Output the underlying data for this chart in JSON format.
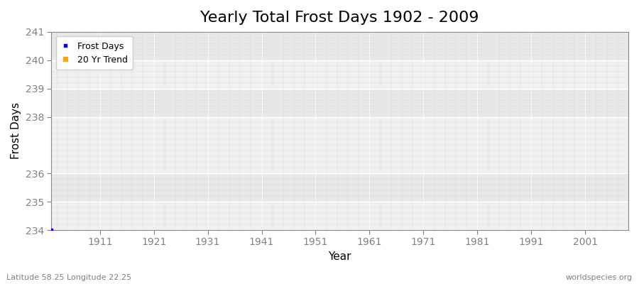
{
  "title": "Yearly Total Frost Days 1902 - 2009",
  "xlabel": "Year",
  "ylabel": "Frost Days",
  "subtitle_left": "Latitude 58.25 Longitude 22.25",
  "subtitle_right": "worldspecies.org",
  "ylim": [
    234,
    241
  ],
  "xlim": [
    1902,
    2009
  ],
  "yticks": [
    234,
    235,
    236,
    238,
    239,
    240,
    241
  ],
  "xticks": [
    1911,
    1921,
    1931,
    1941,
    1951,
    1961,
    1971,
    1981,
    1991,
    2001
  ],
  "data_point_x": 1902,
  "data_point_y": 234,
  "data_color": "#0000ff",
  "trend_color": "#ffa500",
  "fig_bg_color": "#ffffff",
  "plot_bg_color": "#f0f0f0",
  "plot_bg_color_alt": "#e8e8e8",
  "grid_color": "#ffffff",
  "grid_color_minor": "#d8d8d8",
  "title_fontsize": 16,
  "label_fontsize": 11,
  "tick_fontsize": 10,
  "legend_items": [
    "Frost Days",
    "20 Yr Trend"
  ]
}
